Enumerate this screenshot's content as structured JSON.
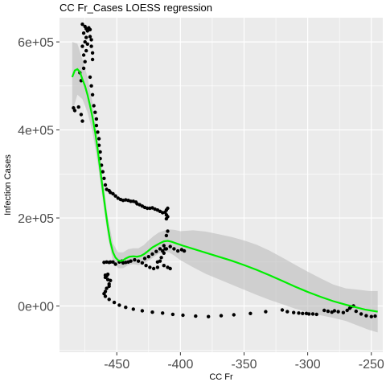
{
  "chart_data": {
    "type": "scatter",
    "title": "CC Fr_Cases LOESS regression",
    "xlabel": "CC Fr",
    "ylabel": "Infection Cases",
    "xlim": [
      -495,
      -241
    ],
    "ylim": [
      -105000,
      655000
    ],
    "x_ticks": [
      -450,
      -400,
      -350,
      -300,
      -250
    ],
    "x_tick_labels": [
      "-450",
      "-400",
      "-350",
      "-300",
      "-250"
    ],
    "y_ticks": [
      0,
      200000,
      400000,
      600000
    ],
    "y_tick_labels": [
      "0e+00",
      "2e+05",
      "4e+05",
      "6e+05"
    ],
    "grid": true,
    "colors": {
      "panel": "#ebebeb",
      "grid": "#ffffff",
      "points": "#000000",
      "smooth": "#00ee00",
      "ribbon": "#bdbdbd"
    },
    "points": [
      [
        -484,
        450000
      ],
      [
        -483,
        444000
      ],
      [
        -480,
        452000
      ],
      [
        -479,
        530000
      ],
      [
        -478,
        512000
      ],
      [
        -478,
        435000
      ],
      [
        -477,
        420000
      ],
      [
        -477,
        590000
      ],
      [
        -477,
        640000
      ],
      [
        -476,
        620000
      ],
      [
        -476,
        570000
      ],
      [
        -476,
        540000
      ],
      [
        -475,
        635000
      ],
      [
        -475,
        600000
      ],
      [
        -475,
        555000
      ],
      [
        -474,
        630000
      ],
      [
        -474,
        610000
      ],
      [
        -474,
        580000
      ],
      [
        -473,
        625000
      ],
      [
        -473,
        595000
      ],
      [
        -472,
        632000
      ],
      [
        -471,
        628000
      ],
      [
        -471,
        612000
      ],
      [
        -470,
        605000
      ],
      [
        -470,
        590000
      ],
      [
        -469,
        575000
      ],
      [
        -469,
        560000
      ],
      [
        -471,
        520000
      ],
      [
        -470,
        500000
      ],
      [
        -469,
        480000
      ],
      [
        -468,
        455000
      ],
      [
        -467,
        440000
      ],
      [
        -466,
        425000
      ],
      [
        -466,
        410000
      ],
      [
        -465,
        395000
      ],
      [
        -464,
        380000
      ],
      [
        -464,
        365000
      ],
      [
        -463,
        350000
      ],
      [
        -463,
        335000
      ],
      [
        -462,
        320000
      ],
      [
        -461,
        305000
      ],
      [
        -460,
        290000
      ],
      [
        -459,
        275000
      ],
      [
        -458,
        265000
      ],
      [
        -456,
        262000
      ],
      [
        -455,
        258000
      ],
      [
        -453,
        255000
      ],
      [
        -451,
        250000
      ],
      [
        -449,
        245000
      ],
      [
        -447,
        242000
      ],
      [
        -445,
        240000
      ],
      [
        -443,
        241000
      ],
      [
        -441,
        240000
      ],
      [
        -439,
        238000
      ],
      [
        -437,
        238000
      ],
      [
        -435,
        236000
      ],
      [
        -434,
        232000
      ],
      [
        -432,
        230000
      ],
      [
        -430,
        227000
      ],
      [
        -428,
        224000
      ],
      [
        -426,
        222000
      ],
      [
        -424,
        222000
      ],
      [
        -422,
        223000
      ],
      [
        -420,
        220000
      ],
      [
        -418,
        218000
      ],
      [
        -416,
        215000
      ],
      [
        -414,
        212000
      ],
      [
        -412,
        213000
      ],
      [
        -411,
        218000
      ],
      [
        -410,
        222000
      ],
      [
        -411,
        207000
      ],
      [
        -410,
        203000
      ],
      [
        -411,
        198000
      ],
      [
        -410,
        170000
      ],
      [
        -411,
        160000
      ],
      [
        -412,
        130000
      ],
      [
        -413,
        120000
      ],
      [
        -415,
        110000
      ],
      [
        -416,
        102000
      ],
      [
        -418,
        100000
      ],
      [
        -413,
        92000
      ],
      [
        -410,
        88000
      ],
      [
        -408,
        85000
      ],
      [
        -418,
        88000
      ],
      [
        -421,
        85000
      ],
      [
        -424,
        88000
      ],
      [
        -427,
        92000
      ],
      [
        -430,
        98000
      ],
      [
        -433,
        102000
      ],
      [
        -436,
        105000
      ],
      [
        -439,
        102000
      ],
      [
        -441,
        100000
      ],
      [
        -443,
        99000
      ],
      [
        -445,
        98000
      ],
      [
        -446,
        102000
      ],
      [
        -448,
        100000
      ],
      [
        -451,
        95000
      ],
      [
        -453,
        100000
      ],
      [
        -455,
        100000
      ],
      [
        -456,
        99000
      ],
      [
        -458,
        100000
      ],
      [
        -460,
        99000
      ],
      [
        -414,
        125000
      ],
      [
        -411,
        130000
      ],
      [
        -408,
        135000
      ],
      [
        -405,
        130000
      ],
      [
        -402,
        125000
      ],
      [
        -399,
        128000
      ],
      [
        -397,
        125000
      ],
      [
        -428,
        108000
      ],
      [
        -425,
        112000
      ],
      [
        -422,
        118000
      ],
      [
        -419,
        124000
      ],
      [
        -416,
        130000
      ],
      [
        -413,
        137000
      ],
      [
        -457,
        72000
      ],
      [
        -458,
        68000
      ],
      [
        -459,
        65000
      ],
      [
        -459,
        70000
      ],
      [
        -457,
        60000
      ],
      [
        -455,
        58000
      ],
      [
        -456,
        50000
      ],
      [
        -456,
        45000
      ],
      [
        -458,
        40000
      ],
      [
        -459,
        33000
      ],
      [
        -460,
        28000
      ],
      [
        -459,
        22000
      ],
      [
        -456,
        15000
      ],
      [
        -452,
        8000
      ],
      [
        -448,
        2000
      ],
      [
        -443,
        -3000
      ],
      [
        -437,
        -7000
      ],
      [
        -430,
        -11000
      ],
      [
        -422,
        -14000
      ],
      [
        -414,
        -16000
      ],
      [
        -406,
        -19000
      ],
      [
        -398,
        -21000
      ],
      [
        -388,
        -23000
      ],
      [
        -378,
        -24000
      ],
      [
        -368,
        -22000
      ],
      [
        -358,
        -20000
      ],
      [
        -345,
        -17000
      ],
      [
        -333,
        -13000
      ],
      [
        -320,
        -9000
      ],
      [
        -316,
        -13000
      ],
      [
        -311,
        -15000
      ],
      [
        -307,
        -16000
      ],
      [
        -304,
        -17000
      ],
      [
        -301,
        -17000
      ],
      [
        -299,
        -18000
      ],
      [
        -296,
        -18000
      ],
      [
        -293,
        -19000
      ],
      [
        -287,
        -10000
      ],
      [
        -284,
        -12000
      ],
      [
        -281,
        -14000
      ],
      [
        -279,
        -11000
      ],
      [
        -276,
        -13000
      ],
      [
        -272,
        -15000
      ],
      [
        -269,
        -10000
      ],
      [
        -267,
        -5000
      ],
      [
        -266,
        -2000
      ],
      [
        -264,
        0
      ],
      [
        -262,
        -12000
      ],
      [
        -258,
        -18000
      ],
      [
        -254,
        -22000
      ],
      [
        -250,
        -24000
      ],
      [
        -247,
        -23000
      ]
    ],
    "smooth": [
      [
        -485,
        520000
      ],
      [
        -483,
        535000
      ],
      [
        -481,
        538000
      ],
      [
        -479,
        532000
      ],
      [
        -477,
        515000
      ],
      [
        -475,
        500000
      ],
      [
        -473,
        480000
      ],
      [
        -471,
        455000
      ],
      [
        -469,
        428000
      ],
      [
        -467,
        395000
      ],
      [
        -465,
        355000
      ],
      [
        -463,
        310000
      ],
      [
        -461,
        265000
      ],
      [
        -459,
        220000
      ],
      [
        -457,
        180000
      ],
      [
        -455,
        145000
      ],
      [
        -453,
        122000
      ],
      [
        -451,
        110000
      ],
      [
        -449,
        104000
      ],
      [
        -447,
        102000
      ],
      [
        -445,
        104000
      ],
      [
        -443,
        108000
      ],
      [
        -440,
        112000
      ],
      [
        -437,
        113000
      ],
      [
        -434,
        112000
      ],
      [
        -431,
        114000
      ],
      [
        -428,
        119000
      ],
      [
        -425,
        126000
      ],
      [
        -422,
        133000
      ],
      [
        -419,
        138000
      ],
      [
        -416,
        143000
      ],
      [
        -413,
        147000
      ],
      [
        -410,
        148000
      ],
      [
        -407,
        146000
      ],
      [
        -403,
        142000
      ],
      [
        -398,
        137000
      ],
      [
        -390,
        130000
      ],
      [
        -380,
        121000
      ],
      [
        -370,
        112000
      ],
      [
        -360,
        103000
      ],
      [
        -350,
        93000
      ],
      [
        -340,
        82000
      ],
      [
        -330,
        70000
      ],
      [
        -320,
        57000
      ],
      [
        -310,
        44000
      ],
      [
        -300,
        32000
      ],
      [
        -290,
        21000
      ],
      [
        -280,
        11000
      ],
      [
        -270,
        3000
      ],
      [
        -262,
        -3000
      ],
      [
        -255,
        -8000
      ],
      [
        -249,
        -11000
      ],
      [
        -245,
        -13000
      ]
    ],
    "band": [
      [
        -485,
        440000,
        600000
      ],
      [
        -481,
        480000,
        596000
      ],
      [
        -477,
        470000,
        560000
      ],
      [
        -473,
        440000,
        520000
      ],
      [
        -469,
        395000,
        461000
      ],
      [
        -465,
        325000,
        385000
      ],
      [
        -461,
        240000,
        290000
      ],
      [
        -457,
        158000,
        202000
      ],
      [
        -453,
        102000,
        142000
      ],
      [
        -449,
        86000,
        122000
      ],
      [
        -445,
        86000,
        122000
      ],
      [
        -441,
        93000,
        129000
      ],
      [
        -437,
        95000,
        131000
      ],
      [
        -433,
        93000,
        131000
      ],
      [
        -429,
        96000,
        138000
      ],
      [
        -425,
        103000,
        149000
      ],
      [
        -421,
        111000,
        159000
      ],
      [
        -417,
        119000,
        167000
      ],
      [
        -413,
        123000,
        171000
      ],
      [
        -409,
        122000,
        174000
      ],
      [
        -405,
        115000,
        173000
      ],
      [
        -400,
        104000,
        170000
      ],
      [
        -390,
        88000,
        172000
      ],
      [
        -380,
        73000,
        169000
      ],
      [
        -370,
        61000,
        163000
      ],
      [
        -360,
        49000,
        157000
      ],
      [
        -350,
        37000,
        149000
      ],
      [
        -340,
        25000,
        139000
      ],
      [
        -330,
        14000,
        126000
      ],
      [
        -320,
        4000,
        110000
      ],
      [
        -310,
        -6000,
        94000
      ],
      [
        -300,
        -14000,
        78000
      ],
      [
        -290,
        -21000,
        63000
      ],
      [
        -280,
        -27000,
        49000
      ],
      [
        -270,
        -34000,
        40000
      ],
      [
        -260,
        -45000,
        37000
      ],
      [
        -252,
        -54000,
        34000
      ],
      [
        -245,
        -60000,
        34000
      ]
    ]
  }
}
